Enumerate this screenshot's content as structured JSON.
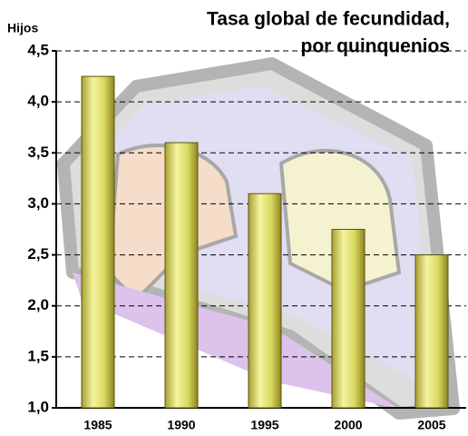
{
  "chart_data": {
    "type": "bar",
    "title": [
      "Tasa global de fecundidad,",
      "por quinquenios"
    ],
    "y_label": "Hijos",
    "categories": [
      "1985",
      "1990",
      "1995",
      "2000",
      "2005"
    ],
    "values": [
      4.25,
      3.6,
      3.1,
      2.75,
      2.5
    ],
    "color": "#d8d860",
    "ylim": [
      1,
      4.5
    ],
    "yticks": [
      {
        "value": 1,
        "label": "1,0"
      },
      {
        "value": 1.5,
        "label": "1,5"
      },
      {
        "value": 2,
        "label": "2,0"
      },
      {
        "value": 2.5,
        "label": "2,5"
      },
      {
        "value": 3,
        "label": "3,0"
      },
      {
        "value": 3.5,
        "label": "3,5"
      },
      {
        "value": 4,
        "label": "4,0"
      },
      {
        "value": 4.5,
        "label": "4,5"
      }
    ],
    "grid": true
  }
}
